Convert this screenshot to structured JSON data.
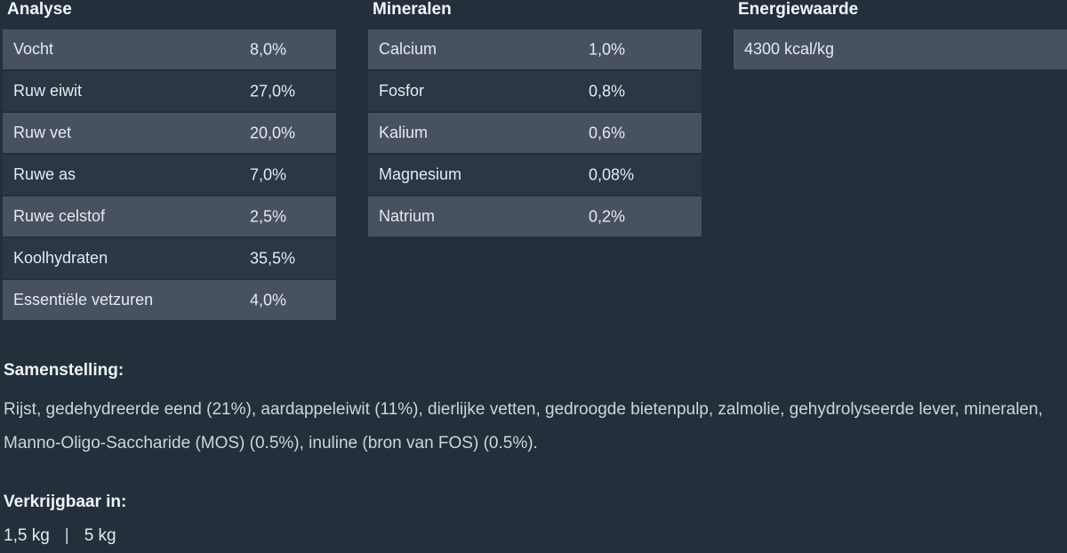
{
  "page": {
    "columns": [
      {
        "title": "Analyse",
        "rows": [
          {
            "label": "Vocht",
            "value": "8,0%"
          },
          {
            "label": "Ruw eiwit",
            "value": "27,0%"
          },
          {
            "label": "Ruw vet",
            "value": "20,0%"
          },
          {
            "label": "Ruwe as",
            "value": "7,0%"
          },
          {
            "label": "Ruwe celstof",
            "value": "2,5%"
          },
          {
            "label": "Koolhydraten",
            "value": "35,5%"
          },
          {
            "label": "Essentiële vetzuren",
            "value": "4,0%"
          }
        ]
      },
      {
        "title": "Mineralen",
        "rows": [
          {
            "label": "Calcium",
            "value": "1,0%"
          },
          {
            "label": "Fosfor",
            "value": "0,8%"
          },
          {
            "label": "Kalium",
            "value": "0,6%"
          },
          {
            "label": "Magnesium",
            "value": "0,08%"
          },
          {
            "label": "Natrium",
            "value": "0,2%"
          }
        ]
      },
      {
        "title": "Energiewaarde",
        "rows": [
          {
            "label": "4300 kcal/kg",
            "value": ""
          }
        ]
      }
    ],
    "samenstelling": {
      "title": "Samenstelling:",
      "text": "Rijst, gedehydreerde eend (21%), aardappeleiwit (11%), dierlijke vetten, gedroogde bietenpulp, zalmolie, gehydrolyseerde lever, mineralen, Manno-Oligo-Saccharide (MOS) (0.5%), inuline (bron van FOS) (0.5%)."
    },
    "verkrijgbaar": {
      "title": "Verkrijgbaar in:",
      "sizes": [
        "1,5 kg",
        "5 kg"
      ],
      "separator": "|"
    },
    "colors": {
      "background": "#232f3b",
      "row_light": "#475160",
      "row_dark": "#2b3745",
      "text": "#e5eaee",
      "heading": "#f3f6f8"
    }
  }
}
